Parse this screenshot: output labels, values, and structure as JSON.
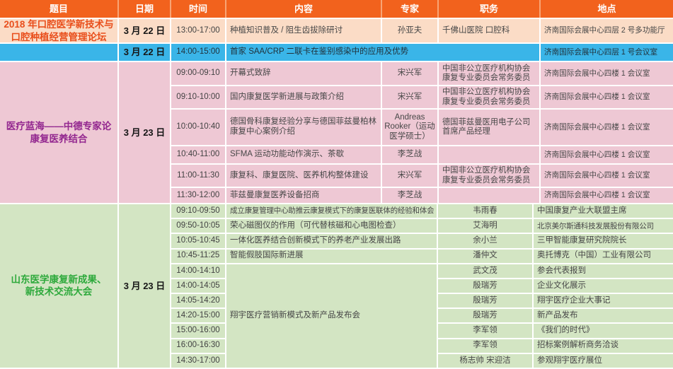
{
  "header": {
    "title": "题目",
    "date": "日期",
    "time": "时间",
    "content": "内容",
    "expert": "专家",
    "position": "职务",
    "location": "地点"
  },
  "sections": {
    "dental_forum": {
      "title_line1": "2018 年口腔医学新技术与",
      "title_line2": "口腔种植经营管理论坛",
      "date": "3 月 22 日",
      "time": "13:00-17:00",
      "content": "种植知识普及 / 阻生齿拔除研讨",
      "expert": "孙亚夫",
      "position": "千佛山医院 口腔科",
      "location": "济南国际会展中心四层 2 号多功能厅"
    },
    "saa_crp": {
      "date": "3 月 22 日",
      "time": "14:00-15:00",
      "content": "首家 SAA/CRP 二联卡在鉴别感染中的应用及优势",
      "location": "济南国际会展中心四层 1 号会议室"
    },
    "rehab_forum": {
      "title_line1": "医疗蓝海——中德专家论",
      "title_line2": "康复医养结合",
      "date": "3 月 23 日",
      "rows": [
        {
          "time": "09:00-09:10",
          "content": "开幕式致辞",
          "expert": "宋兴军",
          "position": "中国非公立医疗机构协会康复专业委员会常务委员",
          "location": "济南国际会展中心四楼 1 会议室"
        },
        {
          "time": "09:10-10:00",
          "content": "国内康复医学新进展与政策介绍",
          "expert": "宋兴军",
          "position": "中国非公立医疗机构协会康复专业委员会常务委员",
          "location": "济南国际会展中心四楼 1 会议室"
        },
        {
          "time": "10:00-10:40",
          "content": "德国骨科康复经验分享与德国菲兹曼柏林康复中心案例介绍",
          "expert": "Andreas Rooker（运动医学硕士）",
          "position": "德国菲兹曼医用电子公司首席产品经理",
          "location": "济南国际会展中心四楼 1 会议室"
        },
        {
          "time": "10:40-11:00",
          "content": "SFMA 运动功能动作演示、茶歇",
          "expert": "李芝战",
          "position": "",
          "location": "济南国际会展中心四楼 1 会议室"
        },
        {
          "time": "11:00-11:30",
          "content": "康复科、康复医院、医养机构整体建设",
          "expert": "宋兴军",
          "position": "中国非公立医疗机构协会康复专业委员会常务委员",
          "location": "济南国际会展中心四楼 1 会议室"
        },
        {
          "time": "11:30-12:00",
          "content": "菲兹曼康复医养设备招商",
          "expert": "李芝战",
          "position": "",
          "location": "济南国际会展中心四楼 1 会议室"
        }
      ]
    },
    "shandong_conf": {
      "title_line1": "山东医学康复新成果、",
      "title_line2": "新技术交流大会",
      "date": "3 月 23 日",
      "merged_content": "翔宇医疗营销新模式及新产品发布会",
      "rows": [
        {
          "time": "09:10-09:50",
          "content": "成立康复管理中心助推云康复模式下的康复医联体的经验和体会",
          "expert": "韦雨春",
          "detail": "中国康复产业大联盟主席"
        },
        {
          "time": "09:50-10:05",
          "content": "荣心磁图仪的作用（可代替核磁和心电图检查）",
          "expert": "艾海明",
          "detail": "北京美尔斯通科技发展股份有限公司"
        },
        {
          "time": "10:05-10:45",
          "content": "一体化医养结合创新模式下的养老产业发展出路",
          "expert": "余小兰",
          "detail": "三甲智能康复研究院院长"
        },
        {
          "time": "10:45-11:25",
          "content": "智能假肢国际新进展",
          "expert": "潘仲文",
          "detail": "奥托博克（中国）工业有限公司"
        },
        {
          "time": "14:00-14:10",
          "content": "",
          "expert": "武文茂",
          "detail": "参会代表报到"
        },
        {
          "time": "14:00-14:05",
          "content": "",
          "expert": "殷瑞芳",
          "detail": "企业文化展示"
        },
        {
          "time": "14:05-14:20",
          "content": "",
          "expert": "殷瑞芳",
          "detail": "翔宇医疗企业大事记"
        },
        {
          "time": "14:20-15:00",
          "content": "",
          "expert": "殷瑞芳",
          "detail": "新产品发布"
        },
        {
          "time": "15:00-16:00",
          "content": "",
          "expert": "李军领",
          "detail": "《我们的时代》"
        },
        {
          "time": "16:00-16:30",
          "content": "",
          "expert": "李军领",
          "detail": "招标案例解析商务洽谈"
        },
        {
          "time": "14:30-17:00",
          "content": "",
          "expert": "杨志帅  宋迎洁",
          "detail": "参观翔宇医疗展位"
        }
      ]
    }
  },
  "colors": {
    "header_bg": "#f2621d",
    "peach_bg": "#fbdcc6",
    "blue_bg": "#3ab5e8",
    "pink_bg": "#eec8d4",
    "green_bg": "#d3e5c3",
    "dental_title_text": "#e94e1b",
    "rehab_title_text": "#93278f",
    "shandong_title_text": "#2ea93c"
  }
}
